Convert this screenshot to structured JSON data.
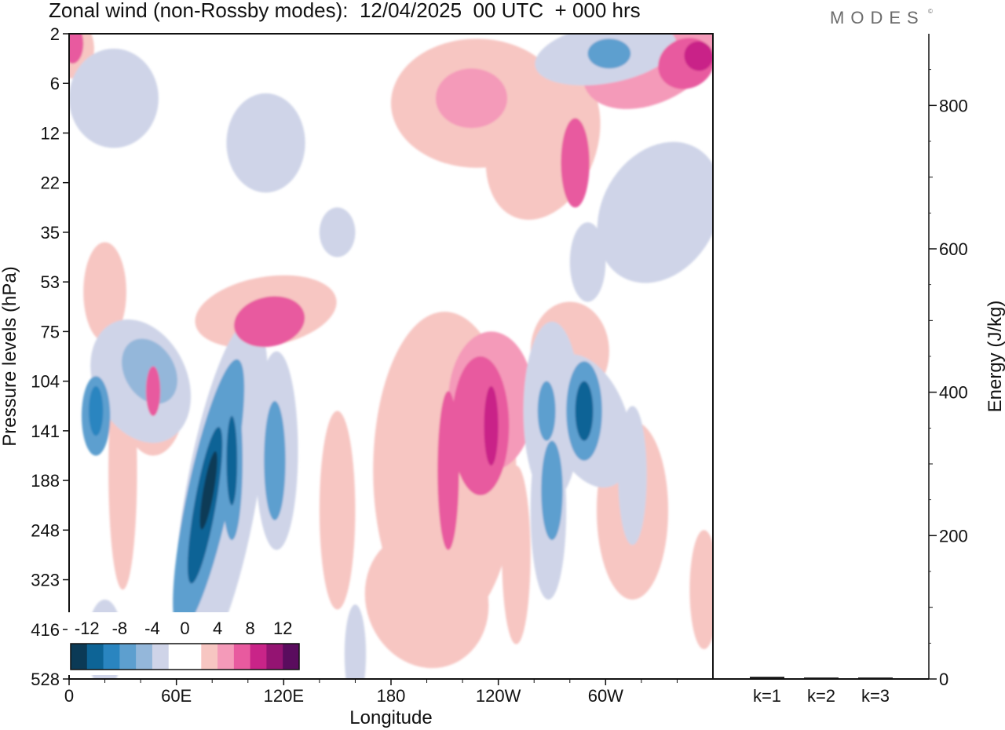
{
  "header": {
    "title": "Zonal wind (non-Rossby modes):  12/04/2025  00 UTC  + 000 hrs",
    "brand": "MODES",
    "brand_mark": "©"
  },
  "colors": {
    "levels": [
      -12,
      -10,
      -8,
      -6,
      -4,
      -2,
      0,
      2,
      4,
      6,
      8,
      10,
      12
    ],
    "fill": [
      "#0b3a56",
      "#0d6496",
      "#2a85c0",
      "#5d9fcf",
      "#94b7da",
      "#cfd4e8",
      "#ffffff",
      "#ffffff",
      "#f7c6c2",
      "#f49ab9",
      "#e85a9f",
      "#c92488",
      "#941472",
      "#5a0c5e"
    ],
    "negative_fill": [
      "#cfd4e8",
      "#94b7da",
      "#5d9fcf",
      "#2a85c0",
      "#0d6496",
      "#0b3a56"
    ],
    "positive_fill": [
      "#f7c6c2",
      "#f49ab9",
      "#e85a9f",
      "#c92488"
    ]
  },
  "chart_data": [
    {
      "type": "heatmap",
      "title": "Zonal wind (non-Rossby modes):  12/04/2025  00 UTC  + 000 hrs",
      "xlabel": "Longitude",
      "ylabel": "Pressure levels (hPa)",
      "x_ticks": [
        "0",
        "60E",
        "120E",
        "180",
        "120W",
        "60W"
      ],
      "x_tick_degrees": [
        0,
        60,
        120,
        180,
        240,
        300
      ],
      "xlim": [
        0,
        360
      ],
      "y_ticks": [
        "2",
        "6",
        "12",
        "22",
        "35",
        "53",
        "75",
        "104",
        "141",
        "188",
        "248",
        "323",
        "416",
        "528"
      ],
      "colorbar": {
        "labels": [
          "-12",
          "-8",
          "-4",
          "0",
          "4",
          "8",
          "12"
        ],
        "label_values": [
          -12,
          -8,
          -4,
          0,
          4,
          8,
          12
        ],
        "levels": [
          -12,
          -10,
          -8,
          -6,
          -4,
          -2,
          0,
          2,
          4,
          6,
          8,
          10,
          12
        ]
      },
      "features": [
        {
          "lon": 78,
          "level": "188",
          "value": -12
        },
        {
          "lon": 91,
          "level": "141",
          "value": -10
        },
        {
          "lon": 15,
          "level": "104",
          "value": -8
        },
        {
          "lon": 42,
          "level": "75",
          "value": -6
        },
        {
          "lon": 115,
          "level": "141",
          "value": -6
        },
        {
          "lon": 288,
          "level": "104",
          "value": -10
        },
        {
          "lon": 266,
          "level": "104",
          "value": -6
        },
        {
          "lon": 270,
          "level": "188",
          "value": -8
        },
        {
          "lon": 236,
          "level": "104",
          "value": 10
        },
        {
          "lon": 212,
          "level": "141",
          "value": 6
        },
        {
          "lon": 112,
          "level": "75",
          "value": 6
        },
        {
          "lon": 47,
          "level": "104",
          "value": 6
        },
        {
          "lon": 282,
          "level": "12",
          "value": 8
        },
        {
          "lon": 350,
          "level": "2",
          "value": 8
        },
        {
          "lon": 2,
          "level": "2",
          "value": 6
        },
        {
          "lon": 302,
          "level": "2",
          "value": -6
        },
        {
          "lon": 130,
          "level": "22",
          "value": 4
        },
        {
          "lon": 225,
          "level": "6",
          "value": 4
        }
      ]
    },
    {
      "type": "bar",
      "ylabel": "Energy (J/kg)",
      "categories": [
        "k=1",
        "k=2",
        "k=3"
      ],
      "values": [
        3,
        2,
        2
      ],
      "ylim": [
        0,
        900
      ],
      "y_ticks": [
        0,
        200,
        400,
        600,
        800
      ]
    }
  ]
}
